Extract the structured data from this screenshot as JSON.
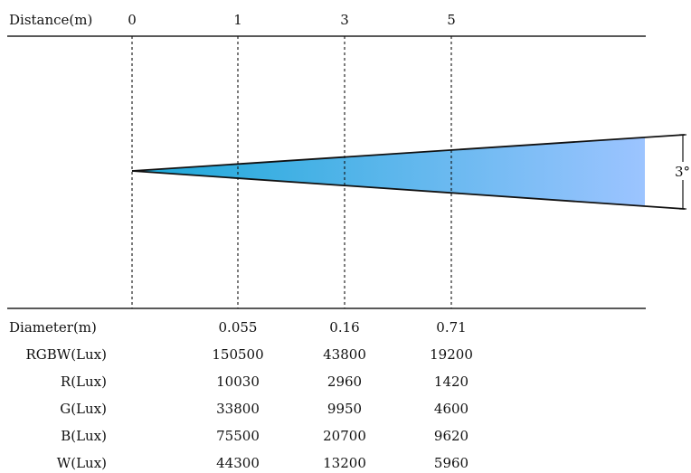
{
  "header": {
    "distance_label": "Distance(m)",
    "distances": [
      "0",
      "1",
      "3",
      "5"
    ]
  },
  "beam": {
    "angle_label": "3°",
    "gradient_start": "#1aa8d8",
    "gradient_end": "#9cc4ff"
  },
  "table": {
    "rows": [
      {
        "label": "Diameter(m)",
        "values": [
          "0.055",
          "0.16",
          "0.71"
        ]
      },
      {
        "label": "RGBW(Lux)",
        "values": [
          "150500",
          "43800",
          "19200"
        ]
      },
      {
        "label": "R(Lux)",
        "values": [
          "10030",
          "2960",
          "1420"
        ]
      },
      {
        "label": "G(Lux)",
        "values": [
          "33800",
          "9950",
          "4600"
        ]
      },
      {
        "label": "B(Lux)",
        "values": [
          "75500",
          "20700",
          "9620"
        ]
      },
      {
        "label": "W(Lux)",
        "values": [
          "44300",
          "13200",
          "5960"
        ]
      }
    ]
  }
}
